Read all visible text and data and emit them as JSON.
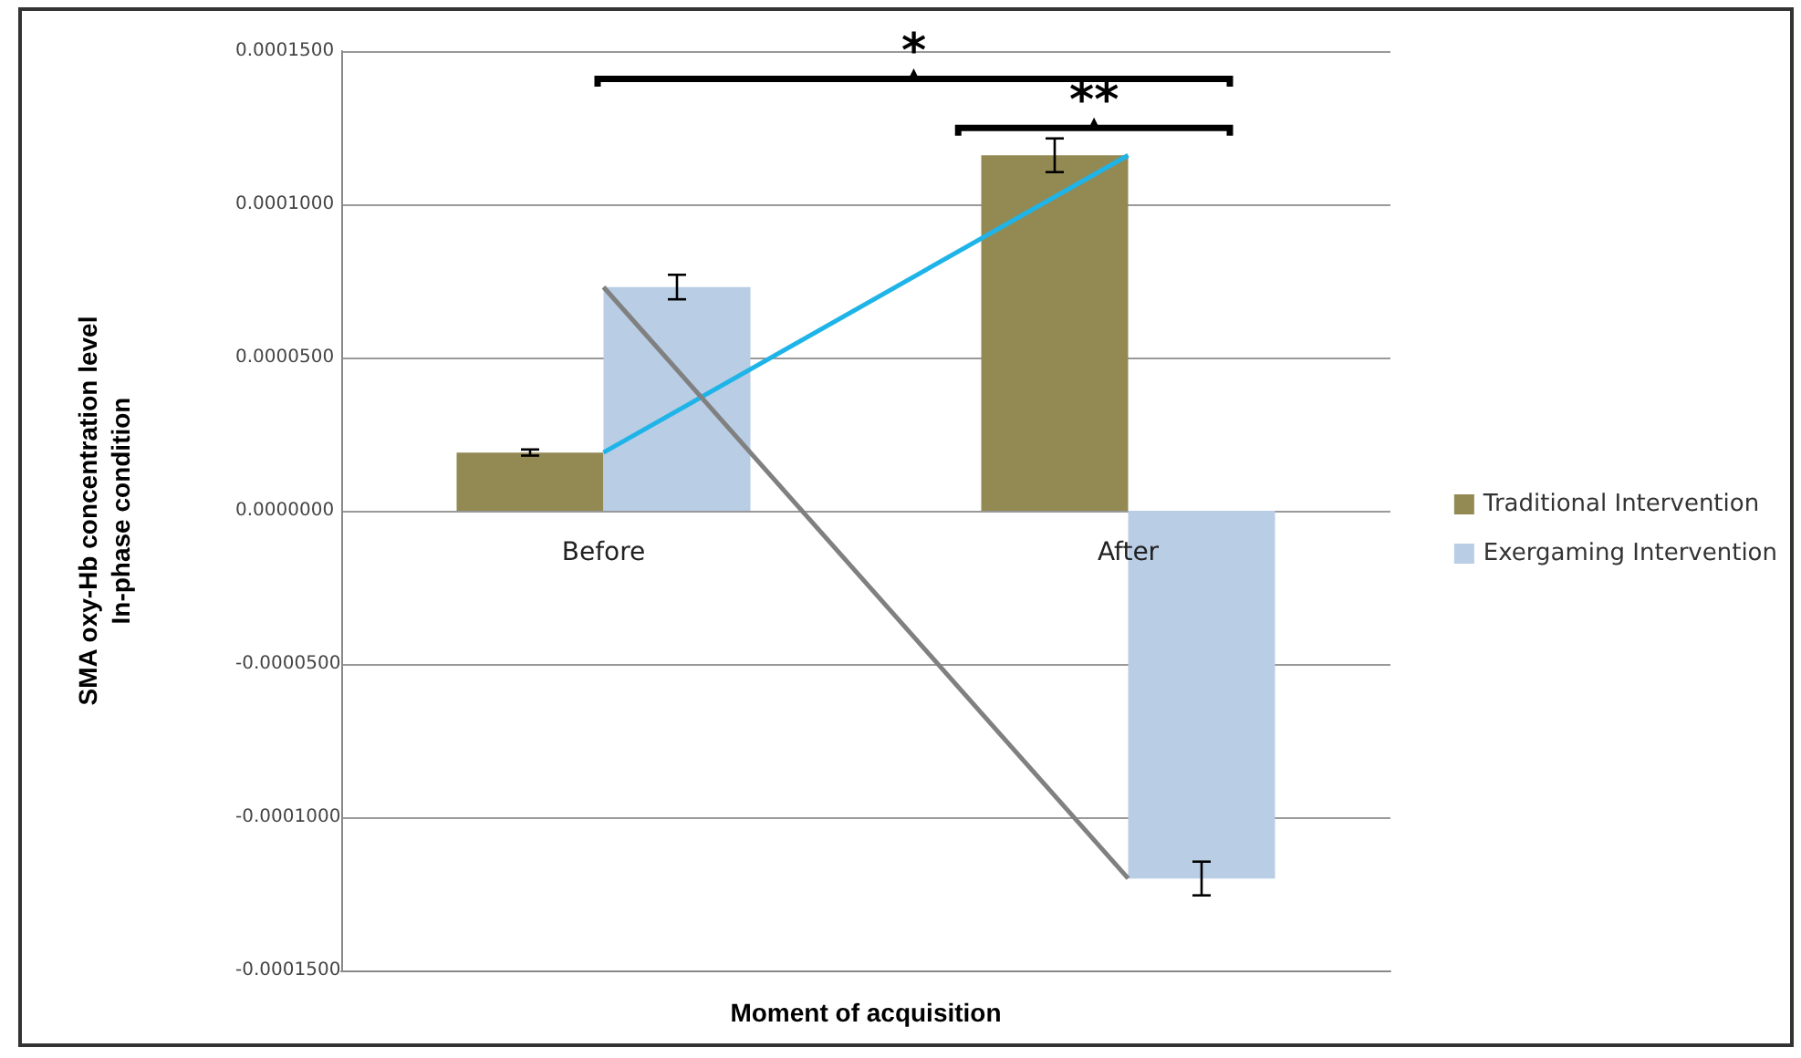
{
  "chart_data": {
    "type": "bar",
    "xlabel": "Moment of acquisition",
    "ylabel": "SMA oxy-Hb concentration level\nIn-phase condition",
    "categories": [
      "Before",
      "After"
    ],
    "series": [
      {
        "name": "Traditional Intervention",
        "color": "#938953",
        "values": [
          1.9e-05,
          0.000116
        ],
        "errors": [
          1e-06,
          5.5e-06
        ]
      },
      {
        "name": "Exergaming Intervention",
        "color": "#b9cde5",
        "values": [
          7.3e-05,
          -0.00012
        ],
        "errors": [
          4e-06,
          5.5e-06
        ]
      },
      {
        "type": "line",
        "color": "#1fb4e8",
        "values": [
          1.9e-05,
          0.000116
        ]
      },
      {
        "type": "line",
        "color": "#808080",
        "values": [
          7.3e-05,
          -0.00012
        ]
      }
    ],
    "ylim": [
      -0.00015,
      0.00015
    ],
    "yticks": [
      {
        "value": -0.00015,
        "label": "-0.0001500"
      },
      {
        "value": -0.0001,
        "label": "-0.0001000"
      },
      {
        "value": -5e-05,
        "label": "-0.0000500"
      },
      {
        "value": 0,
        "label": "0.0000000"
      },
      {
        "value": 5e-05,
        "label": "0.0000500"
      },
      {
        "value": 0.0001,
        "label": "0.0001000"
      },
      {
        "value": 0.00015,
        "label": "0.0001500"
      }
    ],
    "grid": "y",
    "legend": "right",
    "marker": "none",
    "annotations": [
      "*",
      "**"
    ]
  }
}
